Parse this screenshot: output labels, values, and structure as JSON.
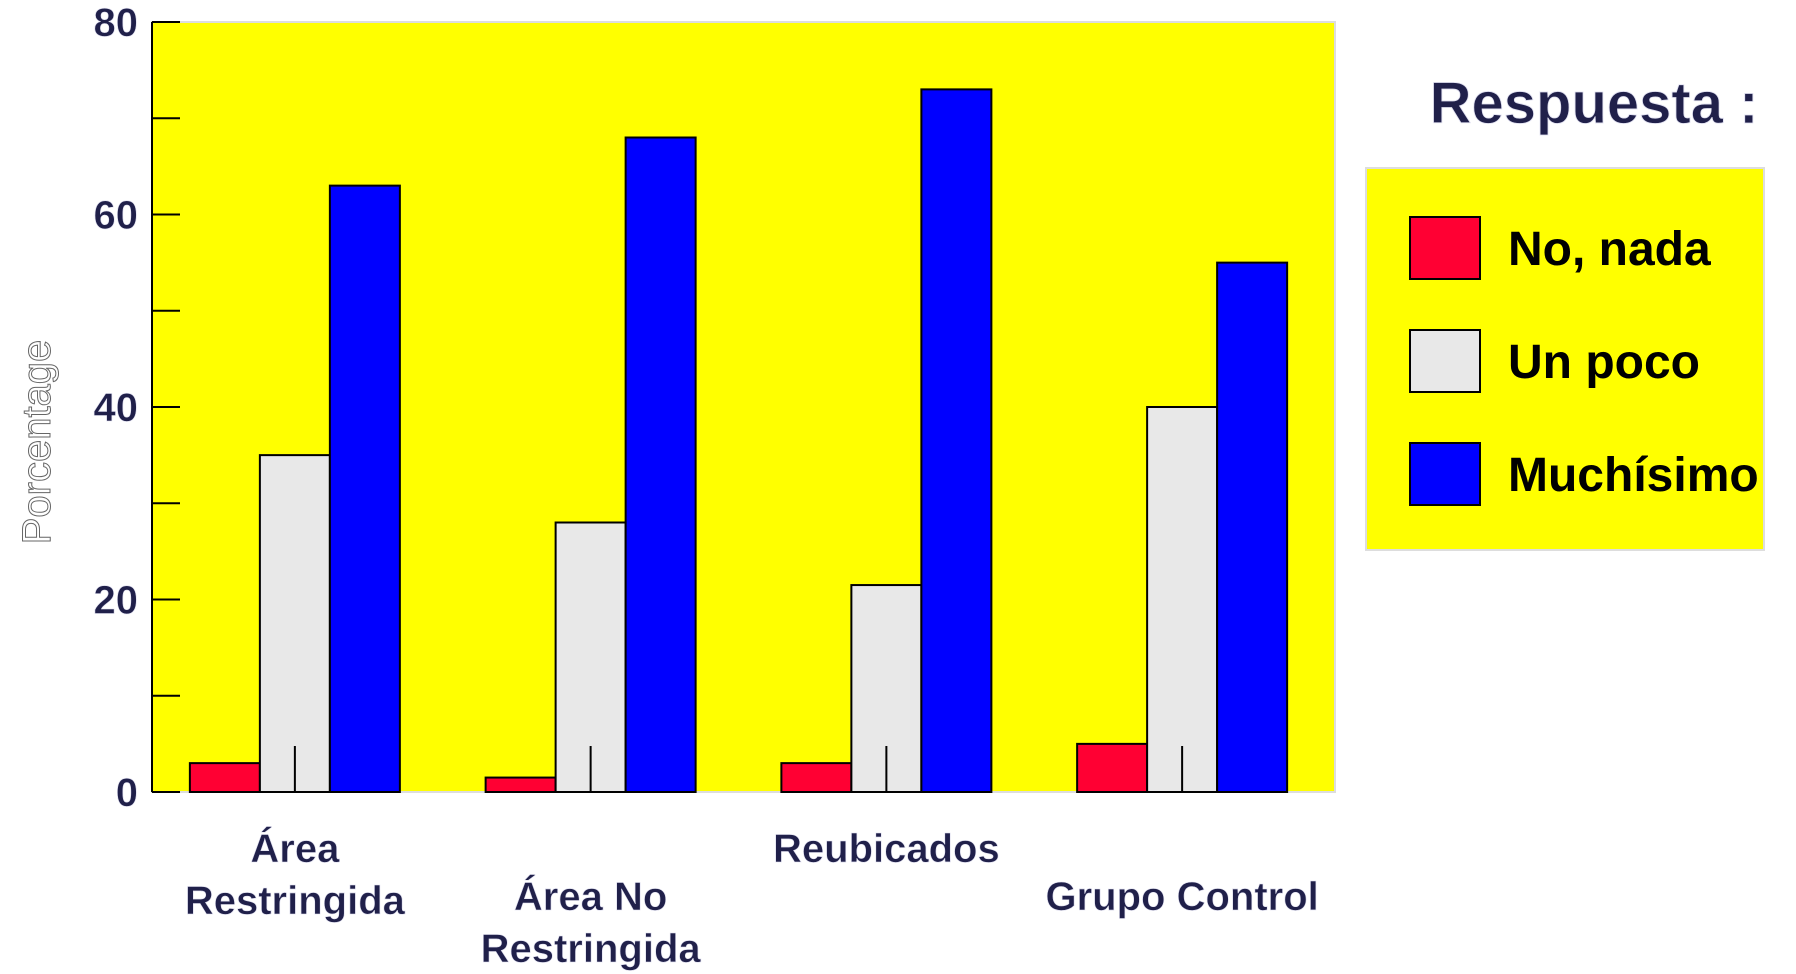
{
  "chart_data": {
    "type": "bar",
    "categories": [
      [
        "Área",
        "Restringida"
      ],
      [
        "Área No",
        "Restringida"
      ],
      [
        "Reubicados"
      ],
      [
        "Grupo Control"
      ]
    ],
    "series": [
      {
        "name": "No, nada",
        "color": "#ff0033",
        "values": [
          3,
          1.5,
          3,
          5
        ]
      },
      {
        "name": "Un poco",
        "color": "#e8e8e8",
        "values": [
          35,
          28,
          21.5,
          40
        ]
      },
      {
        "name": "Muchísimo",
        "color": "#0000ff",
        "values": [
          63,
          68,
          73,
          55
        ]
      }
    ],
    "ylabel": "Porcentage",
    "xlabel": "",
    "ylim": [
      0,
      80
    ],
    "yticks": [
      0,
      20,
      40,
      60,
      80
    ],
    "plot_background": "#ffff00",
    "grid": false,
    "legend": {
      "title": "Respuesta :",
      "position": "right",
      "background": "#ffff00"
    }
  }
}
